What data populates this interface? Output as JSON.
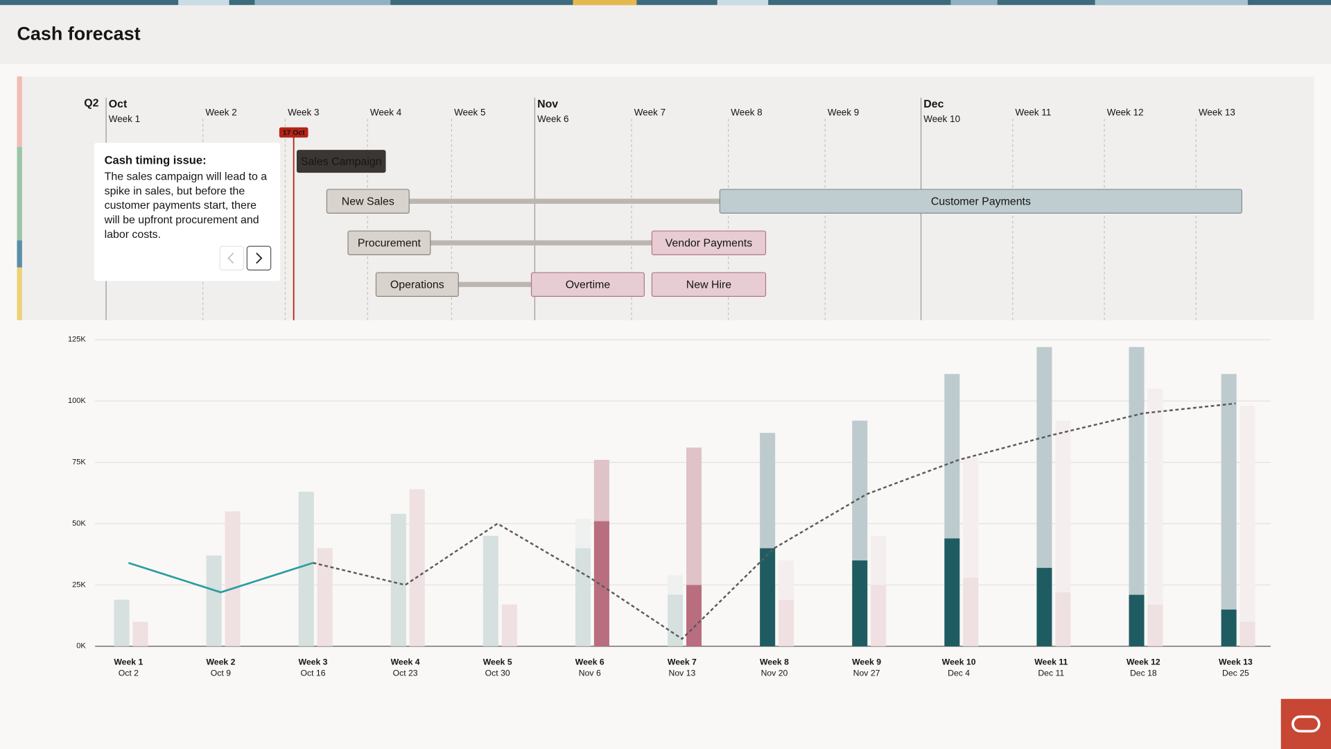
{
  "header": {
    "title": "Cash forecast"
  },
  "timeline": {
    "quarter": "Q2",
    "months": [
      "Oct",
      "Nov",
      "Dec"
    ],
    "weeks": [
      "Week 1",
      "Week 2",
      "Week 3",
      "Week 4",
      "Week 5",
      "Week 6",
      "Week 7",
      "Week 8",
      "Week 9",
      "Week 10",
      "Week 11",
      "Week 12",
      "Week 13"
    ],
    "marker": "17 Oct",
    "callout": {
      "title": "Cash timing issue:",
      "body": "The sales campaign will lead to a spike in sales, but before the customer payments start, there will be upfront procurement and labor costs."
    },
    "tasks": [
      "Sales Campaign",
      "New Sales",
      "Customer Payments",
      "Procurement",
      "Vendor Payments",
      "Operations",
      "Overtime",
      "New Hire"
    ]
  },
  "chart_data": {
    "type": "bar",
    "categories": [
      "Week 1",
      "Week 2",
      "Week 3",
      "Week 4",
      "Week 5",
      "Week 6",
      "Week 7",
      "Week 8",
      "Week 9",
      "Week 10",
      "Week 11",
      "Week 12",
      "Week 13"
    ],
    "date_labels": [
      "Oct 2",
      "Oct 9",
      "Oct 16",
      "Oct 23",
      "Oct 30",
      "Nov 6",
      "Nov 13",
      "Nov 20",
      "Nov 27",
      "Dec 4",
      "Dec 11",
      "Dec 18",
      "Dec 25"
    ],
    "ylim": [
      0,
      125
    ],
    "yticks": [
      {
        "value": 0,
        "label": "0K"
      },
      {
        "value": 25,
        "label": "25K"
      },
      {
        "value": 50,
        "label": "50K"
      },
      {
        "value": 75,
        "label": "75K"
      },
      {
        "value": 100,
        "label": "100K"
      },
      {
        "value": 125,
        "label": "125K"
      }
    ],
    "grid": true,
    "series": [
      {
        "slot": 0,
        "color": "#d5e0df",
        "values": [
          19,
          37,
          63,
          54,
          45,
          40,
          21,
          null,
          null,
          null,
          null,
          null,
          null
        ]
      },
      {
        "slot": 0,
        "color": "#1f5c62",
        "values": [
          null,
          null,
          null,
          null,
          null,
          null,
          null,
          40,
          35,
          44,
          32,
          21,
          15
        ]
      },
      {
        "slot": 0,
        "color": "#bdcbce",
        "values": [
          null,
          null,
          null,
          null,
          null,
          null,
          null,
          47,
          57,
          67,
          90,
          101,
          96
        ]
      },
      {
        "slot": 0,
        "color": "#eef1f0",
        "values": [
          null,
          null,
          null,
          null,
          null,
          12,
          8,
          null,
          null,
          null,
          null,
          null,
          null
        ]
      },
      {
        "slot": 1,
        "color": "#efe0e2",
        "values": [
          10,
          55,
          40,
          64,
          17,
          null,
          null,
          19,
          25,
          28,
          22,
          17,
          10
        ]
      },
      {
        "slot": 1,
        "color": "#b96e7f",
        "values": [
          null,
          null,
          null,
          null,
          null,
          51,
          25,
          null,
          null,
          null,
          null,
          null,
          null
        ]
      },
      {
        "slot": 1,
        "color": "#dfc3c9",
        "values": [
          null,
          null,
          null,
          null,
          null,
          25,
          56,
          null,
          null,
          null,
          null,
          null,
          null
        ]
      },
      {
        "slot": 1,
        "color": "#f5eeee",
        "values": [
          null,
          null,
          null,
          null,
          null,
          null,
          null,
          16,
          20,
          49,
          70,
          88,
          88
        ]
      },
      {
        "type": "line",
        "color": "#2a9d9f",
        "dashed": false,
        "values": [
          34,
          22,
          34,
          null,
          null,
          null,
          null,
          null,
          null,
          null,
          null,
          null,
          null
        ]
      },
      {
        "type": "line",
        "color": "#5a5a5a",
        "dashed": true,
        "values": [
          null,
          null,
          34,
          25,
          50,
          28,
          3,
          40,
          62,
          76,
          86,
          95,
          99
        ]
      }
    ]
  }
}
